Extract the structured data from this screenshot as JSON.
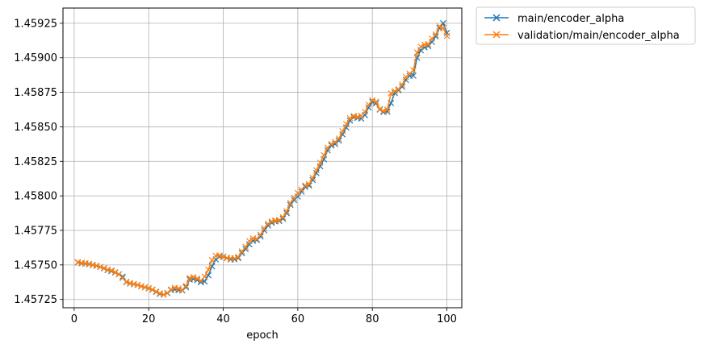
{
  "chart_data": {
    "type": "line",
    "xlabel": "epoch",
    "ylabel": "",
    "title": "",
    "xlim": [
      -3,
      104
    ],
    "ylim": [
      1.45719,
      1.45936
    ],
    "xticks": [
      0,
      20,
      40,
      60,
      80,
      100
    ],
    "yticks": [
      1.45725,
      1.4575,
      1.45775,
      1.458,
      1.45825,
      1.4585,
      1.45875,
      1.459,
      1.45925
    ],
    "ytick_labels": [
      "1.45725",
      "1.45750",
      "1.45775",
      "1.45800",
      "1.45825",
      "1.45850",
      "1.45875",
      "1.45900",
      "1.45925"
    ],
    "xtick_labels": [
      "0",
      "20",
      "40",
      "60",
      "80",
      "100"
    ],
    "grid": true,
    "legend_placement": "outside-top-right",
    "marker": "x",
    "series": [
      {
        "name": "main/encoder_alpha",
        "color": "#1f77b4",
        "x": [
          1,
          2,
          3,
          4,
          5,
          6,
          7,
          8,
          9,
          10,
          11,
          12,
          13,
          14,
          15,
          16,
          17,
          18,
          19,
          20,
          21,
          22,
          23,
          24,
          25,
          26,
          27,
          28,
          29,
          30,
          31,
          32,
          33,
          34,
          35,
          36,
          37,
          38,
          39,
          40,
          41,
          42,
          43,
          44,
          45,
          46,
          47,
          48,
          49,
          50,
          51,
          52,
          53,
          54,
          55,
          56,
          57,
          58,
          59,
          60,
          61,
          62,
          63,
          64,
          65,
          66,
          67,
          68,
          69,
          70,
          71,
          72,
          73,
          74,
          75,
          76,
          77,
          78,
          79,
          80,
          81,
          82,
          83,
          84,
          85,
          86,
          87,
          88,
          89,
          90,
          91,
          92,
          93,
          94,
          95,
          96,
          97,
          98,
          99,
          100
        ],
        "y": [
          1.457518,
          1.457512,
          1.45751,
          1.457505,
          1.4575,
          1.457493,
          1.457485,
          1.457475,
          1.457462,
          1.457455,
          1.457445,
          1.457432,
          1.457415,
          1.457375,
          1.457365,
          1.45736,
          1.457355,
          1.457345,
          1.457338,
          1.45733,
          1.45732,
          1.457305,
          1.45729,
          1.457285,
          1.457295,
          1.457318,
          1.457322,
          1.457318,
          1.457315,
          1.457338,
          1.457395,
          1.457398,
          1.45739,
          1.457375,
          1.45738,
          1.457425,
          1.45749,
          1.45754,
          1.45756,
          1.45756,
          1.45755,
          1.45754,
          1.45754,
          1.45755,
          1.457585,
          1.457615,
          1.45765,
          1.457675,
          1.45768,
          1.457705,
          1.45775,
          1.457785,
          1.457805,
          1.457815,
          1.457818,
          1.457835,
          1.457875,
          1.457935,
          1.45797,
          1.457995,
          1.45803,
          1.458065,
          1.458075,
          1.458115,
          1.458165,
          1.458215,
          1.458265,
          1.45833,
          1.458365,
          1.458375,
          1.4584,
          1.458445,
          1.458495,
          1.458545,
          1.45857,
          1.458565,
          1.45856,
          1.458585,
          1.45864,
          1.45868,
          1.45867,
          1.458625,
          1.458608,
          1.45861,
          1.458672,
          1.458745,
          1.458765,
          1.45879,
          1.45884,
          1.45887,
          1.45887,
          1.459,
          1.459055,
          1.459075,
          1.459085,
          1.459115,
          1.459155,
          1.459215,
          1.45925,
          1.45918
        ]
      },
      {
        "name": "validation/main/encoder_alpha",
        "color": "#ff7f0e",
        "x": [
          1,
          2,
          3,
          4,
          5,
          6,
          7,
          8,
          9,
          10,
          11,
          12,
          13,
          14,
          15,
          16,
          17,
          18,
          19,
          20,
          21,
          22,
          23,
          24,
          25,
          26,
          27,
          28,
          29,
          30,
          31,
          32,
          33,
          34,
          35,
          36,
          37,
          38,
          39,
          40,
          41,
          42,
          43,
          44,
          45,
          46,
          47,
          48,
          49,
          50,
          51,
          52,
          53,
          54,
          55,
          56,
          57,
          58,
          59,
          60,
          61,
          62,
          63,
          64,
          65,
          66,
          67,
          68,
          69,
          70,
          71,
          72,
          73,
          74,
          75,
          76,
          77,
          78,
          79,
          80,
          81,
          82,
          83,
          84,
          85,
          86,
          87,
          88,
          89,
          90,
          91,
          92,
          93,
          94,
          95,
          96,
          97,
          98,
          99,
          100
        ],
        "y": [
          1.45752,
          1.457515,
          1.457512,
          1.457508,
          1.457498,
          1.457495,
          1.457485,
          1.457478,
          1.457465,
          1.45746,
          1.457448,
          1.457432,
          1.457405,
          1.457378,
          1.457368,
          1.457362,
          1.457355,
          1.457345,
          1.457338,
          1.457332,
          1.457322,
          1.457308,
          1.457295,
          1.457285,
          1.457298,
          1.457322,
          1.457335,
          1.45733,
          1.457318,
          1.457348,
          1.457405,
          1.457412,
          1.457402,
          1.457385,
          1.457415,
          1.457465,
          1.457535,
          1.457565,
          1.457568,
          1.457558,
          1.457548,
          1.457548,
          1.457548,
          1.457558,
          1.457598,
          1.45763,
          1.457672,
          1.457692,
          1.457688,
          1.457718,
          1.457765,
          1.457798,
          1.457815,
          1.457822,
          1.457825,
          1.457845,
          1.457888,
          1.457948,
          1.457985,
          1.45802,
          1.458045,
          1.458075,
          1.458085,
          1.45813,
          1.458185,
          1.45824,
          1.458295,
          1.458348,
          1.458375,
          1.45839,
          1.458415,
          1.458468,
          1.45852,
          1.458562,
          1.458578,
          1.458572,
          1.45858,
          1.458608,
          1.45866,
          1.458692,
          1.458682,
          1.458628,
          1.458615,
          1.458625,
          1.458742,
          1.458758,
          1.458772,
          1.458805,
          1.458862,
          1.458885,
          1.45891,
          1.459038,
          1.45908,
          1.459095,
          1.459098,
          1.459138,
          1.459168,
          1.459228,
          1.459215,
          1.459158
        ]
      }
    ]
  }
}
